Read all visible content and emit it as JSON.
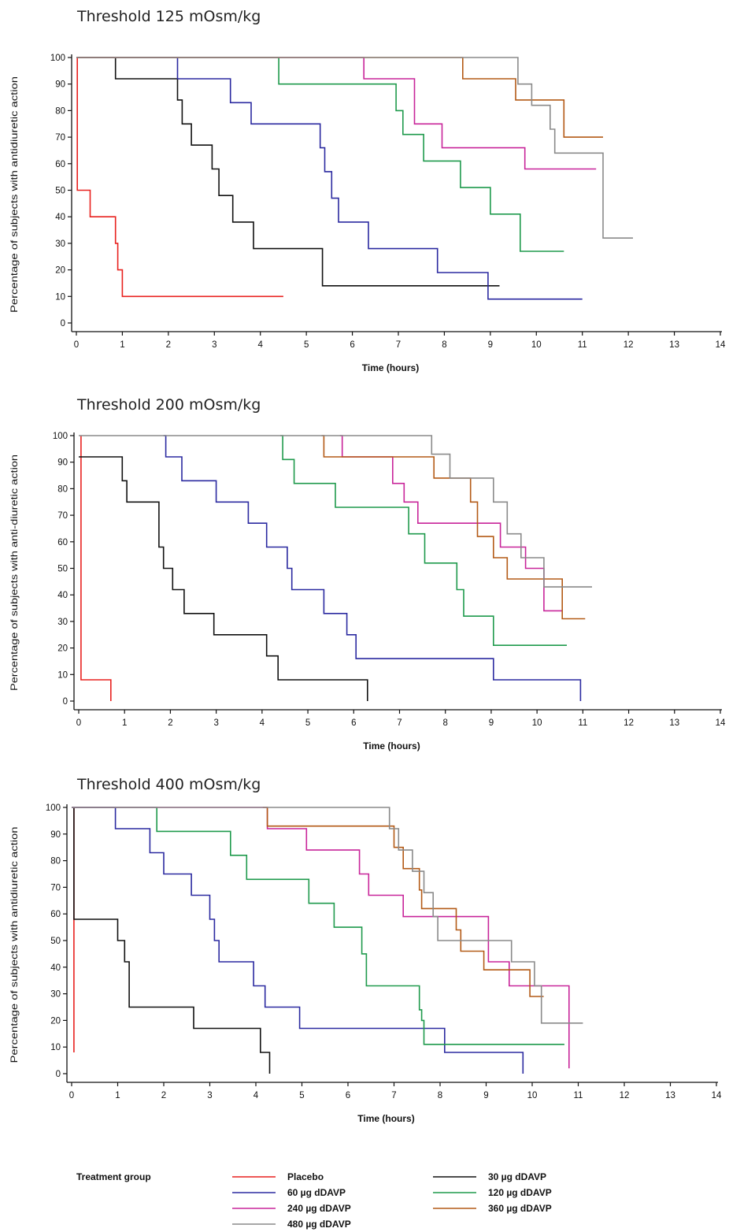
{
  "chart_data": [
    {
      "type": "line",
      "step": true,
      "title": "Threshold 125 mOsm/kg",
      "xlabel": "Time (hours)",
      "ylabel": "Percentage of subjects with antidiuretic action",
      "xlim": [
        0,
        14
      ],
      "ylim": [
        0,
        100
      ],
      "xticks": [
        0,
        1,
        2,
        3,
        4,
        5,
        6,
        7,
        8,
        9,
        10,
        11,
        12,
        13,
        14
      ],
      "yticks": [
        0,
        10,
        20,
        30,
        40,
        50,
        60,
        70,
        80,
        90,
        100
      ],
      "series": [
        {
          "name": "Placebo",
          "color": "#e8211e",
          "points": [
            [
              0,
              100
            ],
            [
              0.02,
              50
            ],
            [
              0.3,
              40
            ],
            [
              0.85,
              30
            ],
            [
              0.9,
              20
            ],
            [
              1.0,
              10
            ],
            [
              4.5,
              10
            ]
          ]
        },
        {
          "name": "30 µg dDAVP",
          "color": "#111111",
          "points": [
            [
              0,
              100
            ],
            [
              0.85,
              92
            ],
            [
              2.2,
              84
            ],
            [
              2.3,
              75
            ],
            [
              2.5,
              67
            ],
            [
              2.95,
              58
            ],
            [
              3.1,
              48
            ],
            [
              3.4,
              38
            ],
            [
              3.85,
              28
            ],
            [
              5.35,
              14
            ],
            [
              9.2,
              14
            ]
          ]
        },
        {
          "name": "60 µg dDAVP",
          "color": "#2b2aa0",
          "points": [
            [
              0,
              100
            ],
            [
              2.2,
              92
            ],
            [
              3.35,
              83
            ],
            [
              3.8,
              75
            ],
            [
              5.3,
              66
            ],
            [
              5.4,
              57
            ],
            [
              5.55,
              47
            ],
            [
              5.7,
              38
            ],
            [
              6.35,
              28
            ],
            [
              7.85,
              19
            ],
            [
              8.95,
              9
            ],
            [
              11.0,
              9
            ]
          ]
        },
        {
          "name": "120 µg dDAVP",
          "color": "#1f9a4c",
          "points": [
            [
              0,
              100
            ],
            [
              4.4,
              90
            ],
            [
              6.95,
              80
            ],
            [
              7.1,
              71
            ],
            [
              7.55,
              61
            ],
            [
              8.35,
              51
            ],
            [
              9.0,
              41
            ],
            [
              9.65,
              27
            ],
            [
              10.6,
              27
            ]
          ]
        },
        {
          "name": "240 µg dDAVP",
          "color": "#c8259a",
          "points": [
            [
              0,
              100
            ],
            [
              6.25,
              92
            ],
            [
              7.35,
              75
            ],
            [
              7.95,
              66
            ],
            [
              9.75,
              58
            ],
            [
              11.3,
              58
            ]
          ]
        },
        {
          "name": "360 µg dDAVP",
          "color": "#b35a16",
          "points": [
            [
              0,
              100
            ],
            [
              8.4,
              92
            ],
            [
              9.55,
              84
            ],
            [
              10.6,
              70
            ],
            [
              11.45,
              70
            ]
          ]
        },
        {
          "name": "480 µg dDAVP",
          "color": "#8a8a8a",
          "points": [
            [
              0,
              100
            ],
            [
              9.6,
              90
            ],
            [
              9.9,
              82
            ],
            [
              10.3,
              73
            ],
            [
              10.4,
              64
            ],
            [
              11.45,
              32
            ],
            [
              12.1,
              32
            ]
          ]
        }
      ]
    },
    {
      "type": "line",
      "step": true,
      "title": "Threshold 200 mOsm/kg",
      "xlabel": "Time (hours)",
      "ylabel": "Percentage of subjects with anti-diuretic action",
      "xlim": [
        0,
        14
      ],
      "ylim": [
        0,
        100
      ],
      "xticks": [
        0,
        1,
        2,
        3,
        4,
        5,
        6,
        7,
        8,
        9,
        10,
        11,
        12,
        13,
        14
      ],
      "yticks": [
        0,
        10,
        20,
        30,
        40,
        50,
        60,
        70,
        80,
        90,
        100
      ],
      "series": [
        {
          "name": "Placebo",
          "color": "#e8211e",
          "points": [
            [
              0.05,
              100
            ],
            [
              0.05,
              8
            ],
            [
              0.7,
              0
            ]
          ]
        },
        {
          "name": "30 µg dDAVP",
          "color": "#111111",
          "points": [
            [
              0,
              92
            ],
            [
              0.95,
              83
            ],
            [
              1.05,
              75
            ],
            [
              1.75,
              58
            ],
            [
              1.85,
              50
            ],
            [
              2.05,
              42
            ],
            [
              2.3,
              33
            ],
            [
              2.95,
              25
            ],
            [
              4.1,
              17
            ],
            [
              4.35,
              8
            ],
            [
              6.3,
              0
            ]
          ]
        },
        {
          "name": "60 µg dDAVP",
          "color": "#2b2aa0",
          "points": [
            [
              1.85,
              100
            ],
            [
              1.9,
              92
            ],
            [
              2.25,
              83
            ],
            [
              3.0,
              75
            ],
            [
              3.7,
              67
            ],
            [
              4.1,
              58
            ],
            [
              4.55,
              50
            ],
            [
              4.65,
              42
            ],
            [
              5.35,
              33
            ],
            [
              5.85,
              25
            ],
            [
              6.05,
              16
            ],
            [
              9.05,
              8
            ],
            [
              10.95,
              0
            ]
          ]
        },
        {
          "name": "120 µg dDAVP",
          "color": "#1f9a4c",
          "points": [
            [
              4.4,
              100
            ],
            [
              4.45,
              91
            ],
            [
              4.7,
              82
            ],
            [
              5.6,
              73
            ],
            [
              7.2,
              63
            ],
            [
              7.55,
              52
            ],
            [
              8.25,
              42
            ],
            [
              8.4,
              32
            ],
            [
              9.05,
              21
            ],
            [
              10.65,
              21
            ]
          ]
        },
        {
          "name": "240 µg dDAVP",
          "color": "#c8259a",
          "points": [
            [
              5.7,
              100
            ],
            [
              5.75,
              92
            ],
            [
              6.85,
              82
            ],
            [
              7.1,
              75
            ],
            [
              7.4,
              67
            ],
            [
              9.2,
              58
            ],
            [
              9.75,
              50
            ],
            [
              10.15,
              34
            ],
            [
              10.55,
              34
            ]
          ]
        },
        {
          "name": "360 µg dDAVP",
          "color": "#b35a16",
          "points": [
            [
              5.3,
              100
            ],
            [
              5.35,
              92
            ],
            [
              7.75,
              84
            ],
            [
              8.55,
              75
            ],
            [
              8.7,
              62
            ],
            [
              9.05,
              54
            ],
            [
              9.35,
              46
            ],
            [
              10.55,
              31
            ],
            [
              11.05,
              31
            ]
          ]
        },
        {
          "name": "480 µg dDAVP",
          "color": "#8a8a8a",
          "points": [
            [
              0,
              100
            ],
            [
              7.7,
              93
            ],
            [
              8.1,
              84
            ],
            [
              9.05,
              75
            ],
            [
              9.35,
              63
            ],
            [
              9.65,
              54
            ],
            [
              10.15,
              43
            ],
            [
              11.2,
              43
            ]
          ]
        }
      ]
    },
    {
      "type": "line",
      "step": true,
      "title": "Threshold 400 mOsm/kg",
      "xlabel": "Time (hours)",
      "ylabel": "Percentage of subjects with antidiuretic action",
      "xlim": [
        0,
        14
      ],
      "ylim": [
        0,
        100
      ],
      "xticks": [
        0,
        1,
        2,
        3,
        4,
        5,
        6,
        7,
        8,
        9,
        10,
        11,
        12,
        13,
        14
      ],
      "yticks": [
        0,
        10,
        20,
        30,
        40,
        50,
        60,
        70,
        80,
        90,
        100
      ],
      "series": [
        {
          "name": "Placebo",
          "color": "#e8211e",
          "points": [
            [
              0.05,
              100
            ],
            [
              0.05,
              8
            ]
          ]
        },
        {
          "name": "30 µg dDAVP",
          "color": "#111111",
          "points": [
            [
              0.05,
              100
            ],
            [
              0.05,
              58
            ],
            [
              1.0,
              50
            ],
            [
              1.15,
              42
            ],
            [
              1.25,
              25
            ],
            [
              2.65,
              17
            ],
            [
              4.1,
              8
            ],
            [
              4.3,
              0
            ]
          ]
        },
        {
          "name": "60 µg dDAVP",
          "color": "#2b2aa0",
          "points": [
            [
              0,
              100
            ],
            [
              0.95,
              92
            ],
            [
              1.7,
              83
            ],
            [
              2.0,
              75
            ],
            [
              2.6,
              67
            ],
            [
              3.0,
              58
            ],
            [
              3.1,
              50
            ],
            [
              3.2,
              42
            ],
            [
              3.95,
              33
            ],
            [
              4.2,
              25
            ],
            [
              4.95,
              17
            ],
            [
              8.1,
              8
            ],
            [
              9.8,
              0
            ]
          ]
        },
        {
          "name": "120 µg dDAVP",
          "color": "#1f9a4c",
          "points": [
            [
              0,
              100
            ],
            [
              1.85,
              91
            ],
            [
              3.45,
              82
            ],
            [
              3.8,
              73
            ],
            [
              5.15,
              64
            ],
            [
              5.7,
              55
            ],
            [
              6.3,
              45
            ],
            [
              6.4,
              33
            ],
            [
              7.55,
              24
            ],
            [
              7.6,
              20
            ],
            [
              7.65,
              11
            ],
            [
              10.7,
              11
            ]
          ]
        },
        {
          "name": "240 µg dDAVP",
          "color": "#c8259a",
          "points": [
            [
              0,
              100
            ],
            [
              4.25,
              92
            ],
            [
              5.1,
              84
            ],
            [
              6.25,
              75
            ],
            [
              6.45,
              67
            ],
            [
              7.2,
              59
            ],
            [
              9.05,
              42
            ],
            [
              9.5,
              33
            ],
            [
              10.8,
              33
            ],
            [
              10.8,
              2
            ]
          ]
        },
        {
          "name": "360 µg dDAVP",
          "color": "#b35a16",
          "points": [
            [
              4.15,
              100
            ],
            [
              4.25,
              93
            ],
            [
              7.0,
              85
            ],
            [
              7.2,
              77
            ],
            [
              7.55,
              69
            ],
            [
              7.6,
              62
            ],
            [
              8.35,
              54
            ],
            [
              8.45,
              46
            ],
            [
              8.95,
              39
            ],
            [
              9.95,
              29
            ],
            [
              10.25,
              29
            ]
          ]
        },
        {
          "name": "480 µg dDAVP",
          "color": "#8a8a8a",
          "points": [
            [
              0,
              100
            ],
            [
              6.9,
              92
            ],
            [
              7.1,
              84
            ],
            [
              7.4,
              76
            ],
            [
              7.65,
              68
            ],
            [
              7.85,
              59
            ],
            [
              7.95,
              50
            ],
            [
              9.55,
              42
            ],
            [
              10.05,
              33
            ],
            [
              10.2,
              19
            ],
            [
              11.1,
              19
            ]
          ]
        }
      ]
    }
  ],
  "legend": {
    "title": "Treatment group",
    "items": [
      {
        "label": "Placebo",
        "color": "#e8211e"
      },
      {
        "label": "30 µg dDAVP",
        "color": "#111111"
      },
      {
        "label": "60 µg dDAVP",
        "color": "#2b2aa0"
      },
      {
        "label": "120 µg dDAVP",
        "color": "#1f9a4c"
      },
      {
        "label": "240 µg dDAVP",
        "color": "#c8259a"
      },
      {
        "label": "360 µg dDAVP",
        "color": "#b35a16"
      },
      {
        "label": "480 µg dDAVP",
        "color": "#8a8a8a"
      }
    ]
  }
}
